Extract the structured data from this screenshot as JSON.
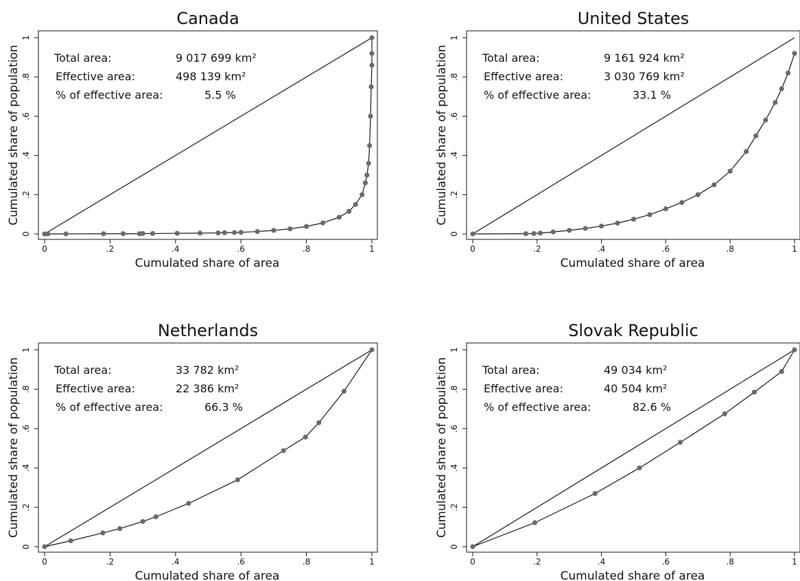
{
  "chart_data": [
    {
      "type": "line",
      "title": "Canada",
      "xlabel": "Cumulated share of area",
      "ylabel": "Cumulated share of population",
      "xlim": [
        0,
        1
      ],
      "ylim": [
        0,
        1
      ],
      "xticks": [
        0,
        0.2,
        0.4,
        0.6,
        0.8,
        1
      ],
      "xtick_labels": [
        "0",
        ".2",
        ".4",
        ".6",
        ".8",
        "1"
      ],
      "yticks": [
        0,
        0.2,
        0.4,
        0.6,
        0.8,
        1
      ],
      "ytick_labels": [
        "0",
        ".2",
        ".4",
        ".6",
        ".8",
        "1"
      ],
      "stats": [
        {
          "label": "Total area:",
          "value": "9 017 699 km²"
        },
        {
          "label": "Effective area:",
          "value": "498 139 km²"
        },
        {
          "label": "% of effective area:",
          "value": "5.5 %"
        }
      ],
      "series": [
        {
          "x": [
            0,
            0.01,
            0.065,
            0.18,
            0.24,
            0.29,
            0.3,
            0.33,
            0.405,
            0.475,
            0.53,
            0.55,
            0.58,
            0.6,
            0.65,
            0.7,
            0.75,
            0.8,
            0.85,
            0.9,
            0.93,
            0.95,
            0.97,
            0.98,
            0.985,
            0.99,
            0.993,
            0.996,
            0.998,
            1.0,
            1.0,
            1.0
          ],
          "y": [
            0,
            0.0,
            0.0,
            0.001,
            0.001,
            0.001,
            0.002,
            0.002,
            0.003,
            0.004,
            0.005,
            0.006,
            0.007,
            0.008,
            0.012,
            0.018,
            0.026,
            0.038,
            0.056,
            0.085,
            0.115,
            0.15,
            0.2,
            0.26,
            0.3,
            0.36,
            0.45,
            0.6,
            0.75,
            0.86,
            0.92,
            1.0
          ]
        },
        {
          "x": [
            0,
            1
          ],
          "y": [
            0,
            1
          ]
        }
      ]
    },
    {
      "type": "line",
      "title": "United States",
      "xlabel": "Cumulated share of area",
      "ylabel": "Cumulated share of population",
      "xlim": [
        0,
        1
      ],
      "ylim": [
        0,
        1
      ],
      "xticks": [
        0,
        0.2,
        0.4,
        0.6,
        0.8,
        1
      ],
      "xtick_labels": [
        "0",
        ".2",
        ".4",
        ".6",
        ".8",
        "1"
      ],
      "yticks": [
        0,
        0.2,
        0.4,
        0.6,
        0.8,
        1
      ],
      "ytick_labels": [
        "0",
        ".2",
        ".4",
        ".6",
        ".8",
        "1"
      ],
      "stats": [
        {
          "label": "Total area:",
          "value": "9 161 924 km²"
        },
        {
          "label": "Effective area:",
          "value": "3 030 769 km²"
        },
        {
          "label": "% of effective area:",
          "value": "33.1 %"
        }
      ],
      "series": [
        {
          "x": [
            0,
            0.165,
            0.19,
            0.21,
            0.25,
            0.3,
            0.35,
            0.4,
            0.45,
            0.5,
            0.55,
            0.6,
            0.65,
            0.7,
            0.75,
            0.8,
            0.85,
            0.88,
            0.91,
            0.94,
            0.96,
            0.98,
            1.0
          ],
          "y": [
            0,
            0.001,
            0.002,
            0.004,
            0.01,
            0.018,
            0.028,
            0.04,
            0.055,
            0.075,
            0.098,
            0.128,
            0.16,
            0.2,
            0.25,
            0.32,
            0.42,
            0.5,
            0.58,
            0.67,
            0.74,
            0.82,
            0.92
          ]
        },
        {
          "x": [
            0,
            1
          ],
          "y": [
            0,
            1
          ]
        }
      ]
    },
    {
      "type": "line",
      "title": "Netherlands",
      "xlabel": "Cumulated share of area",
      "ylabel": "Cumulated share of population",
      "xlim": [
        0,
        1
      ],
      "ylim": [
        0,
        1
      ],
      "xticks": [
        0,
        0.2,
        0.4,
        0.6,
        0.8,
        1
      ],
      "xtick_labels": [
        "0",
        ".2",
        ".4",
        ".6",
        ".8",
        "1"
      ],
      "yticks": [
        0,
        0.2,
        0.4,
        0.6,
        0.8,
        1
      ],
      "ytick_labels": [
        "0",
        ".2",
        ".4",
        ".6",
        ".8",
        "1"
      ],
      "stats": [
        {
          "label": "Total area:",
          "value": "33 782 km²"
        },
        {
          "label": "Effective area:",
          "value": "22 386 km²"
        },
        {
          "label": "% of effective area:",
          "value": "66.3 %"
        }
      ],
      "series": [
        {
          "x": [
            0,
            0.08,
            0.178,
            0.23,
            0.3,
            0.34,
            0.44,
            0.59,
            0.73,
            0.797,
            0.838,
            0.915,
            1.0
          ],
          "y": [
            0,
            0.03,
            0.07,
            0.092,
            0.128,
            0.152,
            0.22,
            0.34,
            0.488,
            0.557,
            0.63,
            0.79,
            1.0
          ]
        },
        {
          "x": [
            0,
            1
          ],
          "y": [
            0,
            1
          ]
        }
      ]
    },
    {
      "type": "line",
      "title": "Slovak Republic",
      "xlabel": "Cumulated share of area",
      "ylabel": "Cumulated share of population",
      "xlim": [
        0,
        1
      ],
      "ylim": [
        0,
        1
      ],
      "xticks": [
        0,
        0.2,
        0.4,
        0.6,
        0.8,
        1
      ],
      "xtick_labels": [
        "0",
        ".2",
        ".4",
        ".6",
        ".8",
        "1"
      ],
      "yticks": [
        0,
        0.2,
        0.4,
        0.6,
        0.8,
        1
      ],
      "ytick_labels": [
        "0",
        ".2",
        ".4",
        ".6",
        ".8",
        "1"
      ],
      "stats": [
        {
          "label": "Total area:",
          "value": "49 034 km²"
        },
        {
          "label": "Effective area:",
          "value": "40 504 km²"
        },
        {
          "label": "% of effective area:",
          "value": "82.6 %"
        }
      ],
      "series": [
        {
          "x": [
            0,
            0.193,
            0.38,
            0.518,
            0.645,
            0.783,
            0.875,
            0.96,
            1.0
          ],
          "y": [
            0,
            0.122,
            0.27,
            0.4,
            0.53,
            0.675,
            0.785,
            0.89,
            1.0
          ]
        },
        {
          "x": [
            0,
            1
          ],
          "y": [
            0,
            1
          ]
        }
      ]
    }
  ]
}
